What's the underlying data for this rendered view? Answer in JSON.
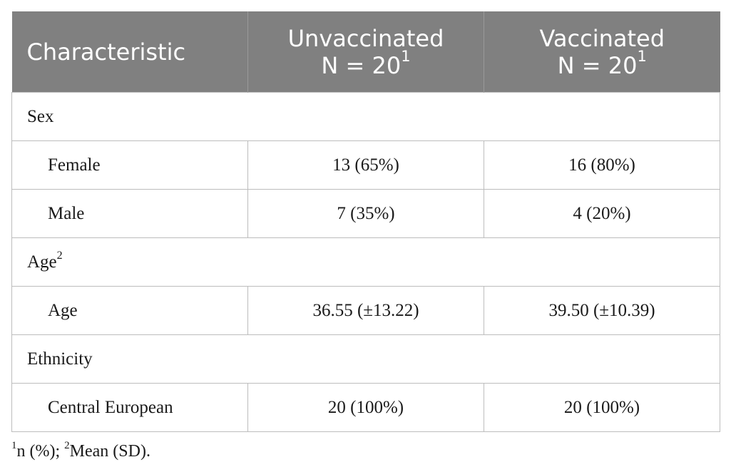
{
  "header": {
    "characteristic": "Characteristic",
    "unvaccinated": {
      "label": "Unvaccinated",
      "n": "N = 20",
      "sup": "1"
    },
    "vaccinated": {
      "label": "Vaccinated",
      "n": "N = 20",
      "sup": "1"
    }
  },
  "groups": {
    "sex": {
      "label": "Sex",
      "female": {
        "label": "Female",
        "unvaccinated": "13 (65%)",
        "vaccinated": "16 (80%)"
      },
      "male": {
        "label": "Male",
        "unvaccinated": "7 (35%)",
        "vaccinated": "4 (20%)"
      }
    },
    "age": {
      "label": "Age",
      "sup": "2",
      "age": {
        "label": "Age",
        "unvaccinated": "36.55 (±13.22)",
        "vaccinated": "39.50 (±10.39)"
      }
    },
    "ethnicity": {
      "label": "Ethnicity",
      "central_european": {
        "label": "Central European",
        "unvaccinated": "20 (100%)",
        "vaccinated": "20 (100%)"
      }
    }
  },
  "footnote": {
    "sup1": "1",
    "text1": "n (%); ",
    "sup2": "2",
    "text2": "Mean (SD)."
  }
}
